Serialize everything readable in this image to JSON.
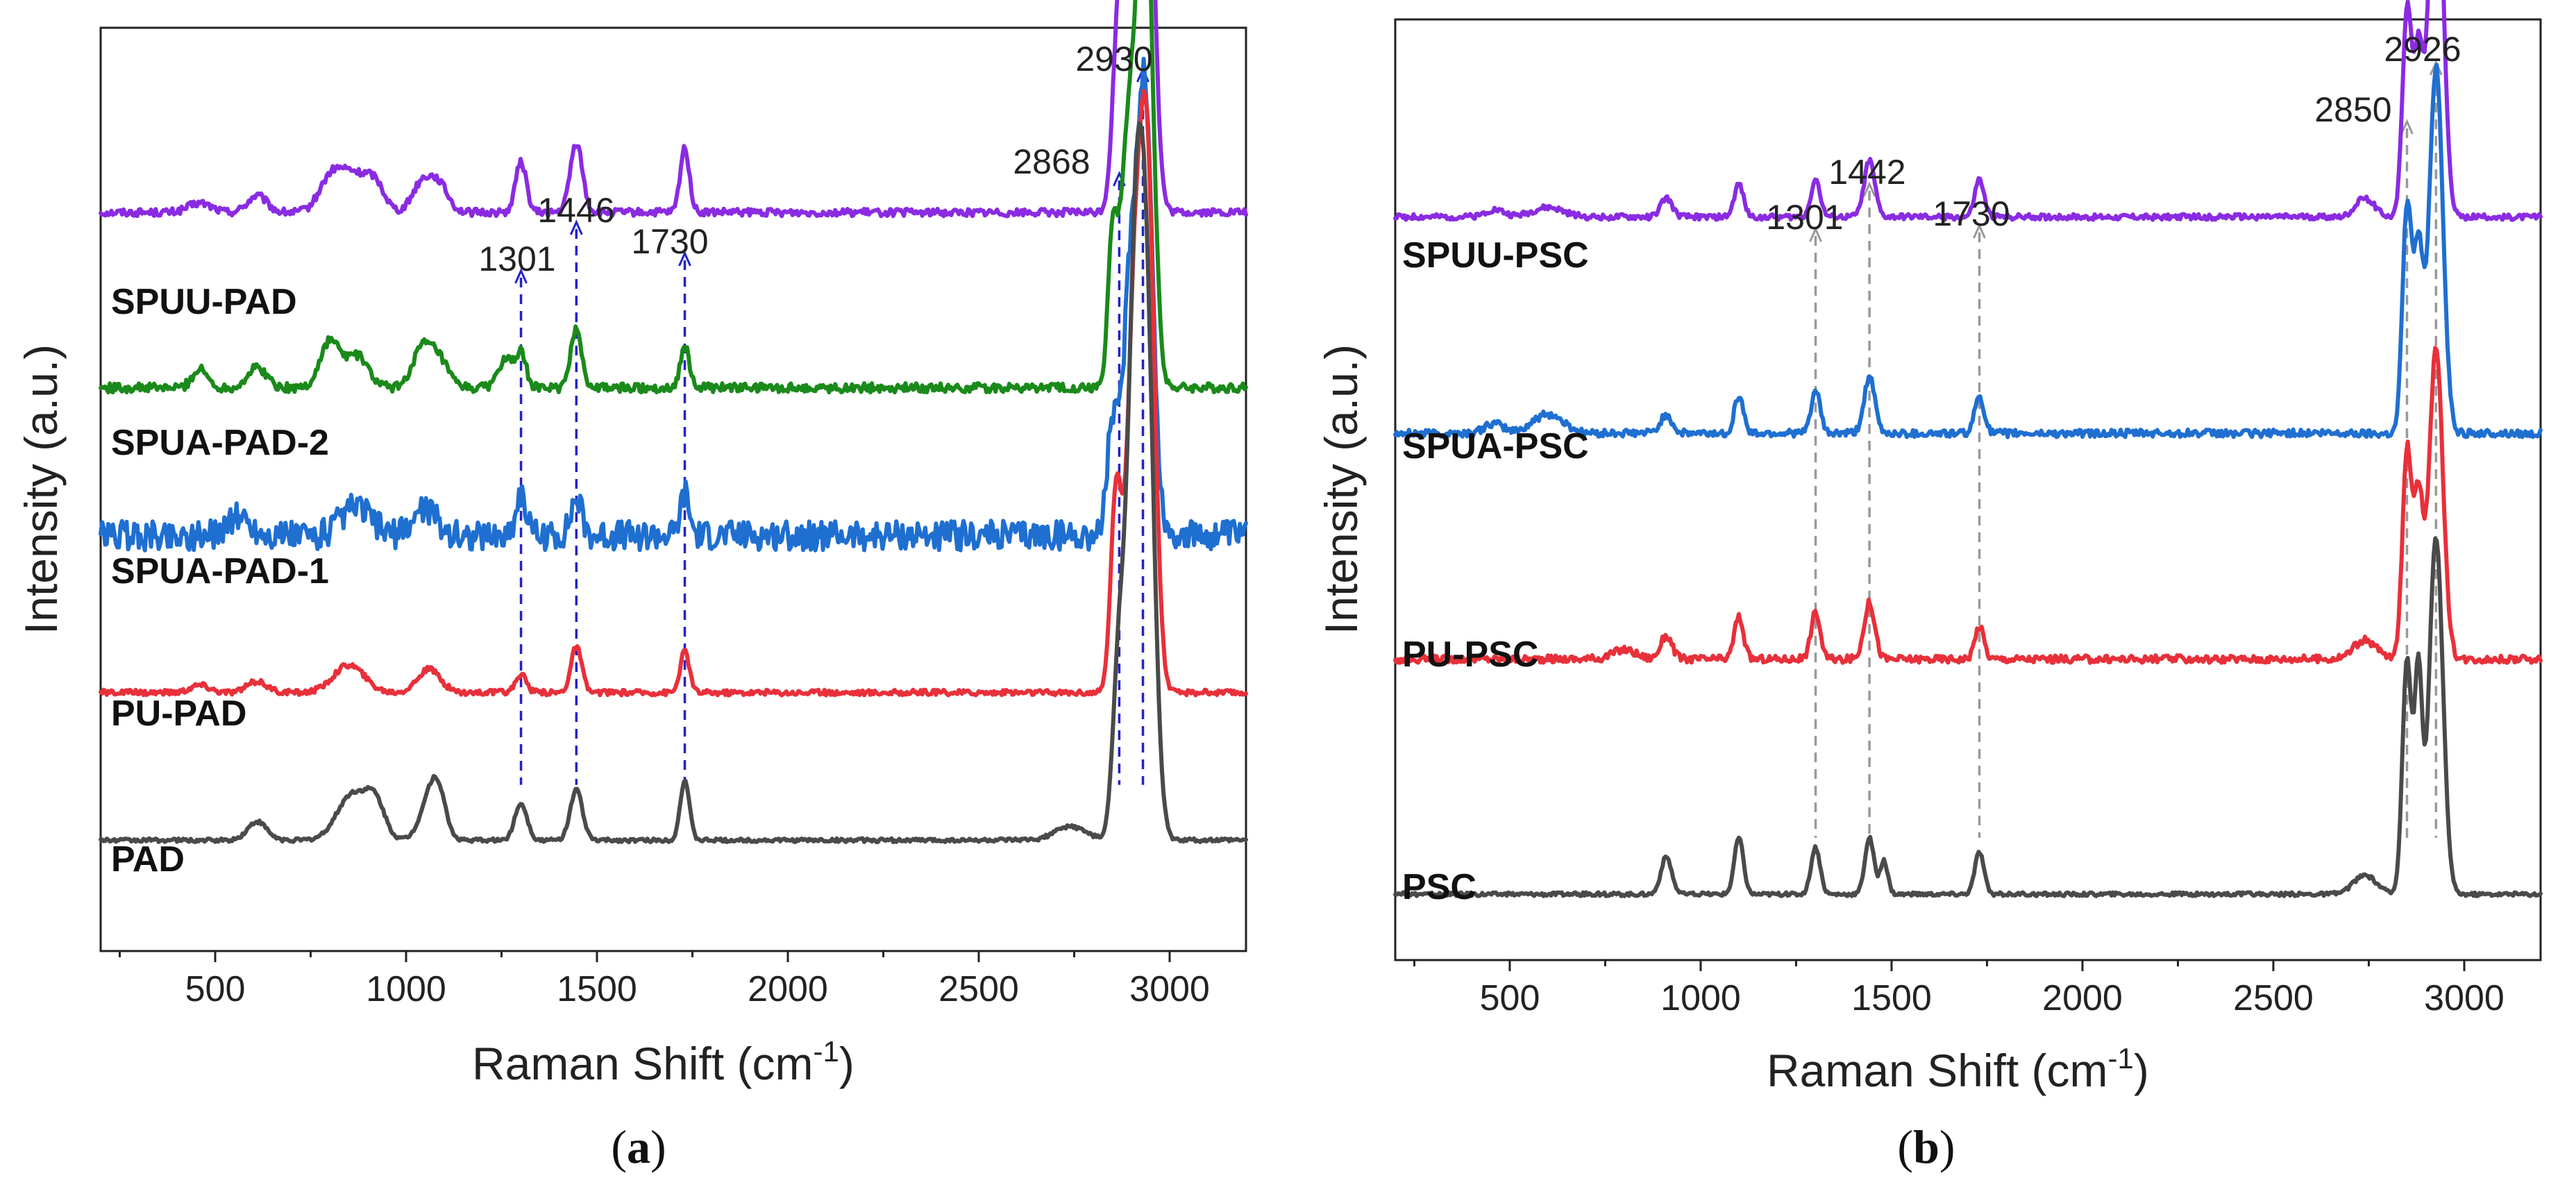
{
  "chart_data": [
    {
      "type": "line",
      "panel_label": "a",
      "xlabel": "Raman Shift (cm",
      "xlabel_sup": "-1",
      "xlabel_close": ")",
      "ylabel": "Intensity (a.u.)",
      "xlim": [
        200,
        3200
      ],
      "xticks": [
        500,
        1000,
        1500,
        2000,
        2500,
        3000
      ],
      "peak_line_color": "#2222cc",
      "peak_line_style": "dashed",
      "peak_annotations": [
        {
          "label": "1301",
          "x": 1301
        },
        {
          "label": "1446",
          "x": 1446
        },
        {
          "label": "1730",
          "x": 1730
        },
        {
          "label": "2868",
          "x": 2868
        },
        {
          "label": "2930",
          "x": 2930
        }
      ],
      "series": [
        {
          "name": "SPUU-PAD",
          "color": "#8a2be2",
          "baseline": 0.8,
          "noise": 0.004,
          "peaks": [
            [
              460,
              0.01,
              30
            ],
            [
              610,
              0.018,
              25
            ],
            [
              800,
              0.03,
              30
            ],
            [
              860,
              0.04,
              40
            ],
            [
              920,
              0.025,
              25
            ],
            [
              1040,
              0.03,
              25
            ],
            [
              1085,
              0.03,
              25
            ],
            [
              1301,
              0.055,
              14
            ],
            [
              1446,
              0.075,
              16
            ],
            [
              1730,
              0.07,
              12
            ],
            [
              2868,
              0.22,
              16
            ],
            [
              2905,
              0.35,
              18
            ],
            [
              2935,
              0.6,
              20
            ]
          ]
        },
        {
          "name": "SPUA-PAD-2",
          "color": "#1a8a1a",
          "baseline": 0.61,
          "noise": 0.005,
          "peaks": [
            [
              460,
              0.02,
              20
            ],
            [
              610,
              0.022,
              25
            ],
            [
              800,
              0.05,
              25
            ],
            [
              870,
              0.035,
              30
            ],
            [
              1040,
              0.04,
              25
            ],
            [
              1085,
              0.03,
              25
            ],
            [
              1260,
              0.03,
              20
            ],
            [
              1301,
              0.035,
              14
            ],
            [
              1446,
              0.065,
              14
            ],
            [
              1730,
              0.045,
              12
            ],
            [
              2850,
              0.15,
              12
            ],
            [
              2890,
              0.26,
              20
            ],
            [
              2935,
              0.58,
              20
            ]
          ]
        },
        {
          "name": "SPUA-PAD-1",
          "color": "#1f6fd1",
          "baseline": 0.45,
          "noise": 0.016,
          "peaks": [
            [
              560,
              0.02,
              30
            ],
            [
              870,
              0.03,
              40
            ],
            [
              1050,
              0.03,
              30
            ],
            [
              1301,
              0.045,
              14
            ],
            [
              1446,
              0.04,
              14
            ],
            [
              1730,
              0.045,
              12
            ],
            [
              2850,
              0.12,
              14
            ],
            [
              2895,
              0.25,
              18
            ],
            [
              2935,
              0.48,
              20
            ]
          ]
        },
        {
          "name": "PU-PAD",
          "color": "#e8303a",
          "baseline": 0.28,
          "noise": 0.003,
          "peaks": [
            [
              460,
              0.008,
              25
            ],
            [
              610,
              0.012,
              25
            ],
            [
              850,
              0.03,
              40
            ],
            [
              1060,
              0.025,
              30
            ],
            [
              1301,
              0.02,
              14
            ],
            [
              1446,
              0.05,
              14
            ],
            [
              1730,
              0.045,
              12
            ],
            [
              2860,
              0.22,
              14
            ],
            [
              2905,
              0.35,
              18
            ],
            [
              2940,
              0.58,
              20
            ]
          ]
        },
        {
          "name": "PAD",
          "color": "#4a4a4a",
          "baseline": 0.12,
          "noise": 0.002,
          "peaks": [
            [
              610,
              0.02,
              25
            ],
            [
              860,
              0.05,
              40
            ],
            [
              920,
              0.035,
              25
            ],
            [
              1060,
              0.04,
              25
            ],
            [
              1085,
              0.04,
              20
            ],
            [
              1301,
              0.04,
              16
            ],
            [
              1446,
              0.055,
              16
            ],
            [
              1730,
              0.065,
              12
            ],
            [
              2740,
              0.015,
              40
            ],
            [
              2868,
              0.2,
              16
            ],
            [
              2905,
              0.4,
              18
            ],
            [
              2935,
              0.62,
              22
            ]
          ]
        }
      ],
      "series_labels": [
        "SPUU-PAD",
        "SPUA-PAD-2",
        "SPUA-PAD-1",
        "PU-PAD",
        "PAD"
      ]
    },
    {
      "type": "line",
      "panel_label": "b",
      "xlabel": "Raman Shift (cm",
      "xlabel_sup": "-1",
      "xlabel_close": ")",
      "ylabel": "Intensity (a.u.)",
      "xlim": [
        200,
        3200
      ],
      "xticks": [
        500,
        1000,
        1500,
        2000,
        2500,
        3000
      ],
      "peak_line_color": "#999999",
      "peak_line_style": "dashed",
      "peak_annotations": [
        {
          "label": "1301",
          "x": 1301
        },
        {
          "label": "1442",
          "x": 1442
        },
        {
          "label": "1730",
          "x": 1730
        },
        {
          "label": "2850",
          "x": 2850
        },
        {
          "label": "2926",
          "x": 2926
        }
      ],
      "series": [
        {
          "name": "SPUU-PSC",
          "color": "#8a2be2",
          "baseline": 0.79,
          "noise": 0.003,
          "peaks": [
            [
              460,
              0.008,
              25
            ],
            [
              600,
              0.01,
              40
            ],
            [
              910,
              0.02,
              15
            ],
            [
              1100,
              0.035,
              12
            ],
            [
              1301,
              0.04,
              12
            ],
            [
              1442,
              0.06,
              14
            ],
            [
              1730,
              0.04,
              12
            ],
            [
              2740,
              0.02,
              25
            ],
            [
              2850,
              0.22,
              12
            ],
            [
              2880,
              0.17,
              12
            ],
            [
              2926,
              0.43,
              18
            ]
          ]
        },
        {
          "name": "SPUA-PSC",
          "color": "#1f6fd1",
          "baseline": 0.56,
          "noise": 0.004,
          "peaks": [
            [
              460,
              0.01,
              25
            ],
            [
              600,
              0.02,
              40
            ],
            [
              910,
              0.02,
              15
            ],
            [
              1100,
              0.04,
              12
            ],
            [
              1301,
              0.045,
              12
            ],
            [
              1442,
              0.06,
              14
            ],
            [
              1730,
              0.04,
              12
            ],
            [
              2850,
              0.24,
              12
            ],
            [
              2880,
              0.19,
              12
            ],
            [
              2926,
              0.39,
              18
            ]
          ]
        },
        {
          "name": "PU-PSC",
          "color": "#e8303a",
          "baseline": 0.32,
          "noise": 0.004,
          "peaks": [
            [
              800,
              0.01,
              30
            ],
            [
              910,
              0.025,
              15
            ],
            [
              1100,
              0.045,
              12
            ],
            [
              1301,
              0.05,
              12
            ],
            [
              1442,
              0.06,
              14
            ],
            [
              1730,
              0.035,
              12
            ],
            [
              2740,
              0.02,
              30
            ],
            [
              2850,
              0.22,
              12
            ],
            [
              2880,
              0.17,
              12
            ],
            [
              2926,
              0.33,
              18
            ]
          ]
        },
        {
          "name": "PSC",
          "color": "#4a4a4a",
          "baseline": 0.07,
          "noise": 0.002,
          "peaks": [
            [
              910,
              0.04,
              14
            ],
            [
              1100,
              0.06,
              12
            ],
            [
              1301,
              0.05,
              12
            ],
            [
              1442,
              0.06,
              12
            ],
            [
              1480,
              0.035,
              10
            ],
            [
              1730,
              0.045,
              12
            ],
            [
              2740,
              0.02,
              30
            ],
            [
              2850,
              0.25,
              12
            ],
            [
              2880,
              0.23,
              10
            ],
            [
              2926,
              0.38,
              18
            ]
          ]
        }
      ],
      "series_labels": [
        "SPUU-PSC",
        "SPUA-PSC",
        "PU-PSC",
        "PSC"
      ]
    }
  ]
}
